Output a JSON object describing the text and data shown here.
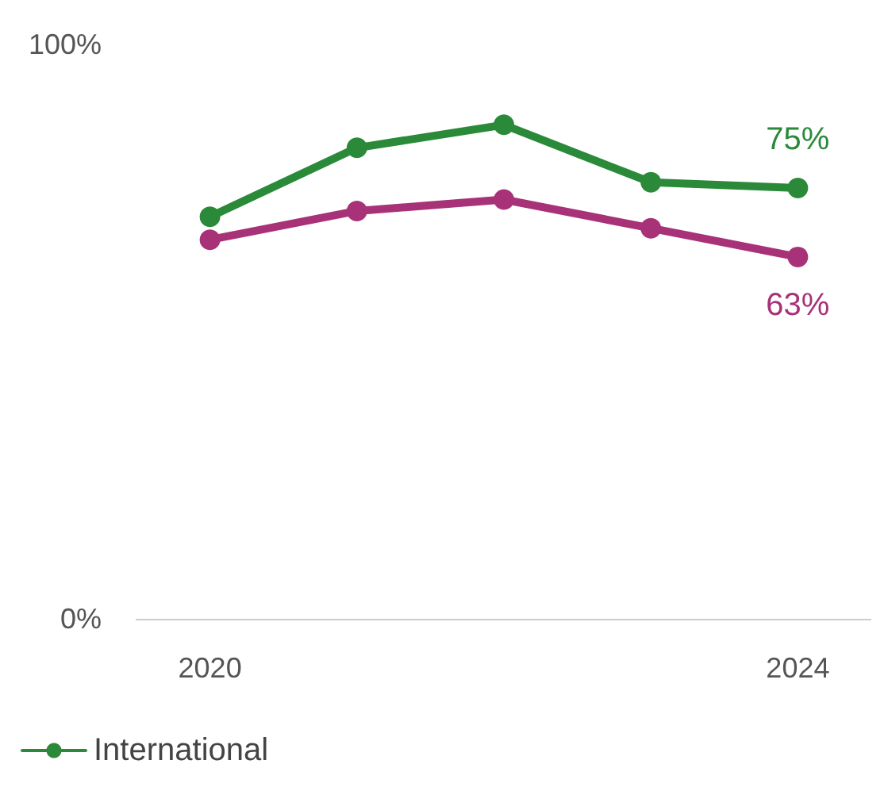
{
  "chart_data": {
    "type": "line",
    "x": [
      2020,
      2021,
      2022,
      2023,
      2024
    ],
    "xlim": [
      2019.5,
      2024.5
    ],
    "xticks": [
      2020,
      2024
    ],
    "ylim": [
      0,
      100
    ],
    "yticks": [
      {
        "value": 0,
        "label": "0%"
      },
      {
        "value": 100,
        "label": "100%"
      }
    ],
    "series": [
      {
        "name": "International",
        "color": "#2a8a3a",
        "values": [
          70,
          82,
          86,
          76,
          75
        ],
        "value_labels": [
          null,
          null,
          null,
          null,
          "75%"
        ]
      },
      {
        "color": "#a83278",
        "values": [
          66,
          71,
          73,
          68,
          63
        ],
        "value_labels": [
          null,
          null,
          null,
          null,
          "63%"
        ]
      }
    ],
    "marker": "circle",
    "line_style": "solid",
    "grid": false,
    "legend": "bottom left"
  }
}
